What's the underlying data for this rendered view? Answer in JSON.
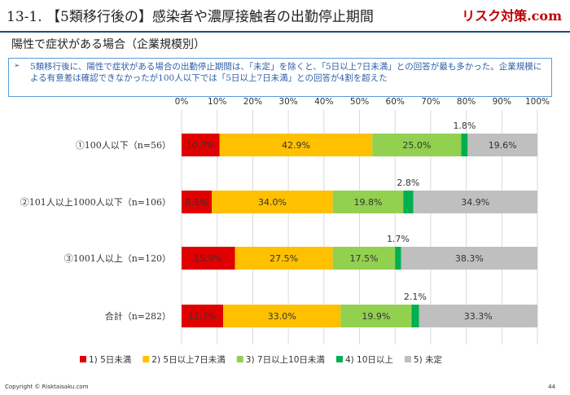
{
  "header": {
    "title": "13-1. 【5類移行後の】感染者や濃厚接触者の出勤停止期間",
    "brand": "リスク対策.com",
    "subtitle": "陽性で症状がある場合（企業規模別）"
  },
  "note": {
    "marker": "➢",
    "text": "5類移行後に、陽性で症状がある場合の出勤停止期間は、「未定」を除くと、「5日以上7日未満」との回答が最も多かった。企業規模による有意差は確認できなかったが100人以下では「5日以上7日未満」との回答が4割を超えた"
  },
  "chart_data": {
    "type": "bar",
    "orientation": "horizontal",
    "stacked": "percent",
    "categories": [
      "①100人以下（n=56）",
      "②101人以上1000人以下（n=106）",
      "③1001人以上（n=120）",
      "合計（n=282）"
    ],
    "series": [
      {
        "name": "1) 5日未満",
        "color": "#e00000",
        "values": [
          10.7,
          8.5,
          15.0,
          11.7
        ],
        "labels": [
          "10.7%",
          "8.5%",
          "15.0%",
          "11.7%"
        ]
      },
      {
        "name": "2) 5日以上7日未満",
        "color": "#ffc000",
        "values": [
          42.9,
          34.0,
          27.5,
          33.0
        ],
        "labels": [
          "42.9%",
          "34.0%",
          "27.5%",
          "33.0%"
        ]
      },
      {
        "name": "3) 7日以上10日未満",
        "color": "#92d050",
        "values": [
          25.0,
          19.8,
          17.5,
          19.9
        ],
        "labels": [
          "25.0%",
          "19.8%",
          "17.5%",
          "19.9%"
        ]
      },
      {
        "name": "4) 10日以上",
        "color": "#00b050",
        "values": [
          1.8,
          2.8,
          1.7,
          2.1
        ],
        "labels": [
          "1.8%",
          "2.8%",
          "1.7%",
          "2.1%"
        ]
      },
      {
        "name": "5) 未定",
        "color": "#bfbfbf",
        "values": [
          19.6,
          34.9,
          38.3,
          33.3
        ],
        "labels": [
          "19.6%",
          "34.9%",
          "38.3%",
          "33.3%"
        ]
      }
    ],
    "xlim": [
      0,
      100
    ],
    "x_ticks": [
      "0%",
      "10%",
      "20%",
      "30%",
      "40%",
      "50%",
      "60%",
      "70%",
      "80%",
      "90%",
      "100%"
    ],
    "grid": true,
    "legend_position": "bottom"
  },
  "footer": {
    "copyright": "Copyright © Risktaisaku.com",
    "page": "44"
  }
}
